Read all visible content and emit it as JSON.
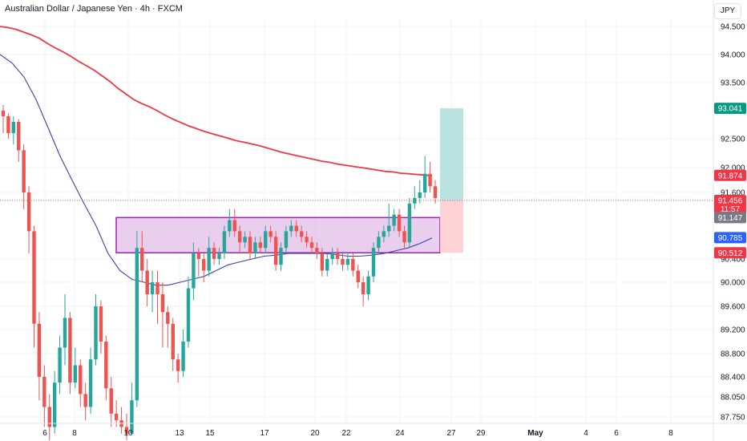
{
  "header": {
    "title": "Australian Dollar / Japanese Yen · 4h · FXCM",
    "currency": "JPY"
  },
  "colors": {
    "bull": "#26a69a",
    "bear": "#ef5350",
    "ema_red": "#f23645",
    "ema_blue": "#3f3fb0",
    "zone_fill": "#e1bee7",
    "zone_border": "#9c27b0",
    "target_fill": "#b2dfdb",
    "stop_fill": "#ffcdd2",
    "text": "#131722",
    "grid": "#f0f3fa"
  },
  "price_labels": [
    {
      "value": 93.041,
      "text": "93.041",
      "bg": "#089981",
      "fg": "#ffffff"
    },
    {
      "value": 91.874,
      "text": "91.874",
      "bg": "#f23645",
      "fg": "#ffffff"
    },
    {
      "value": 91.456,
      "text": "91.456",
      "text2": "11:57",
      "bg": "#f23645",
      "fg": "#ffffff"
    },
    {
      "value": 91.147,
      "text": "91.147",
      "bg": "#787b86",
      "fg": "#ffffff"
    },
    {
      "value": 90.785,
      "text": "90.785",
      "bg": "#2962ff",
      "fg": "#ffffff"
    },
    {
      "value": 90.512,
      "text": "90.512",
      "bg": "#f23645",
      "fg": "#ffffff"
    }
  ],
  "chart_data": {
    "type": "candlestick",
    "title": "Australian Dollar / Japanese Yen · 4h · FXCM",
    "y_ticks": [
      "94.500",
      "94.000",
      "93.500",
      "92.500",
      "92.000",
      "91.600",
      "90.400",
      "90.000",
      "89.600",
      "89.200",
      "88.800",
      "88.400",
      "88.050",
      "87.750"
    ],
    "x_ticks": [
      "6",
      "8",
      "10",
      "13",
      "15",
      "17",
      "20",
      "22",
      "24",
      "27",
      "29",
      "May",
      "4",
      "6",
      "8"
    ],
    "last_price": 91.456,
    "countdown": "11:57",
    "zone": {
      "top": 91.147,
      "bottom": 90.512
    },
    "position": {
      "entry": 91.456,
      "target": 93.041,
      "stop": 90.512
    },
    "candles": [
      [
        93.0,
        92.9,
        93.1,
        92.6
      ],
      [
        92.9,
        92.6,
        92.95,
        92.5
      ],
      [
        92.6,
        92.8,
        92.9,
        92.4
      ],
      [
        92.8,
        92.3,
        92.85,
        92.1
      ],
      [
        92.3,
        91.6,
        92.4,
        91.3
      ],
      [
        91.6,
        90.9,
        91.7,
        90.5
      ],
      [
        90.9,
        89.3,
        91.0,
        88.9
      ],
      [
        89.3,
        88.4,
        89.5,
        88.0
      ],
      [
        88.4,
        87.9,
        88.6,
        87.6
      ],
      [
        87.9,
        87.6,
        88.1,
        87.4
      ],
      [
        87.6,
        88.3,
        88.5,
        87.5
      ],
      [
        88.3,
        88.9,
        89.1,
        88.1
      ],
      [
        88.9,
        89.4,
        89.8,
        88.6
      ],
      [
        89.4,
        88.3,
        89.5,
        88.1
      ],
      [
        88.3,
        88.6,
        88.9,
        88.2
      ],
      [
        88.6,
        88.1,
        88.7,
        87.9
      ],
      [
        88.1,
        87.9,
        88.3,
        87.7
      ],
      [
        87.9,
        88.7,
        88.9,
        87.8
      ],
      [
        88.7,
        89.6,
        89.8,
        88.6
      ],
      [
        89.6,
        89.0,
        89.7,
        88.8
      ],
      [
        89.0,
        88.2,
        89.1,
        88.0
      ],
      [
        88.2,
        87.8,
        88.4,
        87.6
      ],
      [
        87.8,
        87.7,
        88.0,
        87.6
      ],
      [
        87.7,
        87.6,
        87.9,
        87.5
      ],
      [
        87.6,
        87.5,
        87.8,
        87.4
      ],
      [
        87.5,
        88.0,
        88.3,
        87.5
      ],
      [
        88.0,
        90.6,
        90.9,
        87.9
      ],
      [
        90.6,
        90.2,
        90.9,
        90.0
      ],
      [
        90.2,
        89.8,
        90.4,
        89.6
      ],
      [
        89.8,
        90.0,
        90.2,
        89.5
      ],
      [
        90.0,
        89.8,
        90.2,
        89.3
      ],
      [
        89.8,
        89.5,
        90.0,
        88.9
      ],
      [
        89.5,
        89.3,
        89.6,
        88.9
      ],
      [
        89.3,
        88.7,
        89.4,
        88.5
      ],
      [
        88.7,
        88.5,
        88.8,
        88.3
      ],
      [
        88.5,
        89.0,
        89.2,
        88.4
      ],
      [
        89.0,
        89.9,
        90.1,
        88.9
      ],
      [
        89.9,
        90.5,
        90.7,
        89.7
      ],
      [
        90.5,
        90.4,
        90.6,
        90.1
      ],
      [
        90.4,
        90.2,
        90.5,
        90.0
      ],
      [
        90.2,
        90.6,
        90.8,
        90.1
      ],
      [
        90.6,
        90.4,
        90.7,
        90.3
      ],
      [
        90.4,
        90.5,
        90.6,
        90.3
      ],
      [
        90.5,
        90.9,
        91.0,
        90.4
      ],
      [
        90.9,
        91.1,
        91.3,
        90.8
      ],
      [
        91.1,
        90.9,
        91.3,
        90.8
      ],
      [
        90.9,
        90.7,
        91.0,
        90.5
      ],
      [
        90.7,
        90.8,
        90.9,
        90.6
      ],
      [
        90.8,
        90.5,
        90.9,
        90.4
      ],
      [
        90.5,
        90.7,
        90.8,
        90.4
      ],
      [
        90.7,
        90.6,
        90.8,
        90.5
      ],
      [
        90.6,
        90.9,
        91.0,
        90.5
      ],
      [
        90.9,
        90.8,
        91.0,
        90.7
      ],
      [
        90.8,
        90.3,
        90.9,
        90.2
      ],
      [
        90.3,
        90.6,
        90.7,
        90.2
      ],
      [
        90.6,
        90.9,
        91.0,
        90.5
      ],
      [
        90.9,
        91.0,
        91.1,
        90.8
      ],
      [
        91.0,
        90.9,
        91.1,
        90.8
      ],
      [
        90.9,
        90.8,
        91.0,
        90.7
      ],
      [
        90.8,
        90.7,
        90.9,
        90.6
      ],
      [
        90.7,
        90.6,
        90.8,
        90.5
      ],
      [
        90.6,
        90.5,
        90.7,
        90.4
      ],
      [
        90.5,
        90.2,
        90.6,
        90.1
      ],
      [
        90.2,
        90.4,
        90.5,
        90.1
      ],
      [
        90.4,
        90.5,
        90.6,
        90.3
      ],
      [
        90.5,
        90.4,
        90.6,
        90.3
      ],
      [
        90.4,
        90.3,
        90.5,
        90.2
      ],
      [
        90.3,
        90.4,
        90.5,
        90.2
      ],
      [
        90.4,
        90.2,
        90.5,
        90.1
      ],
      [
        90.2,
        90.0,
        90.3,
        89.9
      ],
      [
        90.0,
        89.8,
        90.1,
        89.6
      ],
      [
        89.8,
        90.1,
        90.2,
        89.7
      ],
      [
        90.1,
        90.6,
        90.7,
        90.0
      ],
      [
        90.6,
        90.8,
        90.9,
        90.5
      ],
      [
        90.8,
        90.9,
        91.0,
        90.7
      ],
      [
        90.9,
        91.0,
        91.4,
        90.8
      ],
      [
        91.0,
        91.2,
        91.3,
        90.9
      ],
      [
        91.2,
        90.9,
        91.3,
        90.8
      ],
      [
        90.9,
        90.7,
        91.0,
        90.6
      ],
      [
        90.7,
        91.4,
        91.5,
        90.6
      ],
      [
        91.4,
        91.5,
        91.7,
        91.3
      ],
      [
        91.5,
        91.6,
        91.8,
        91.4
      ],
      [
        91.6,
        91.9,
        92.2,
        91.5
      ],
      [
        91.9,
        91.7,
        92.1,
        91.6
      ],
      [
        91.7,
        91.5,
        91.8,
        91.4
      ]
    ],
    "ema_red": [
      94.5,
      94.48,
      94.45,
      94.4,
      94.35,
      94.29,
      94.2,
      94.12,
      94.05,
      93.97,
      93.88,
      93.8,
      93.72,
      93.62,
      93.52,
      93.4,
      93.3,
      93.2,
      93.13,
      93.07,
      93.0,
      92.92,
      92.85,
      92.79,
      92.73,
      92.68,
      92.63,
      92.59,
      92.55,
      92.51,
      92.47,
      92.44,
      92.41,
      92.38,
      92.34,
      92.3,
      92.26,
      92.23,
      92.2,
      92.17,
      92.14,
      92.11,
      92.09,
      92.06,
      92.04,
      92.02,
      92.0,
      91.98,
      91.96,
      91.94,
      91.93,
      91.91,
      91.9,
      91.89,
      91.88,
      91.87
    ],
    "ema_blue": [
      94.0,
      93.85,
      93.6,
      93.2,
      92.7,
      92.2,
      91.8,
      91.4,
      91.0,
      90.5,
      90.2,
      90.05,
      90.0,
      89.95,
      89.95,
      90.0,
      90.05,
      90.1,
      90.2,
      90.3,
      90.35,
      90.4,
      90.45,
      90.47,
      90.5,
      90.5,
      90.5,
      90.5,
      90.48,
      90.45,
      90.45,
      90.47,
      90.5,
      90.55,
      90.6,
      90.68,
      90.78
    ]
  }
}
